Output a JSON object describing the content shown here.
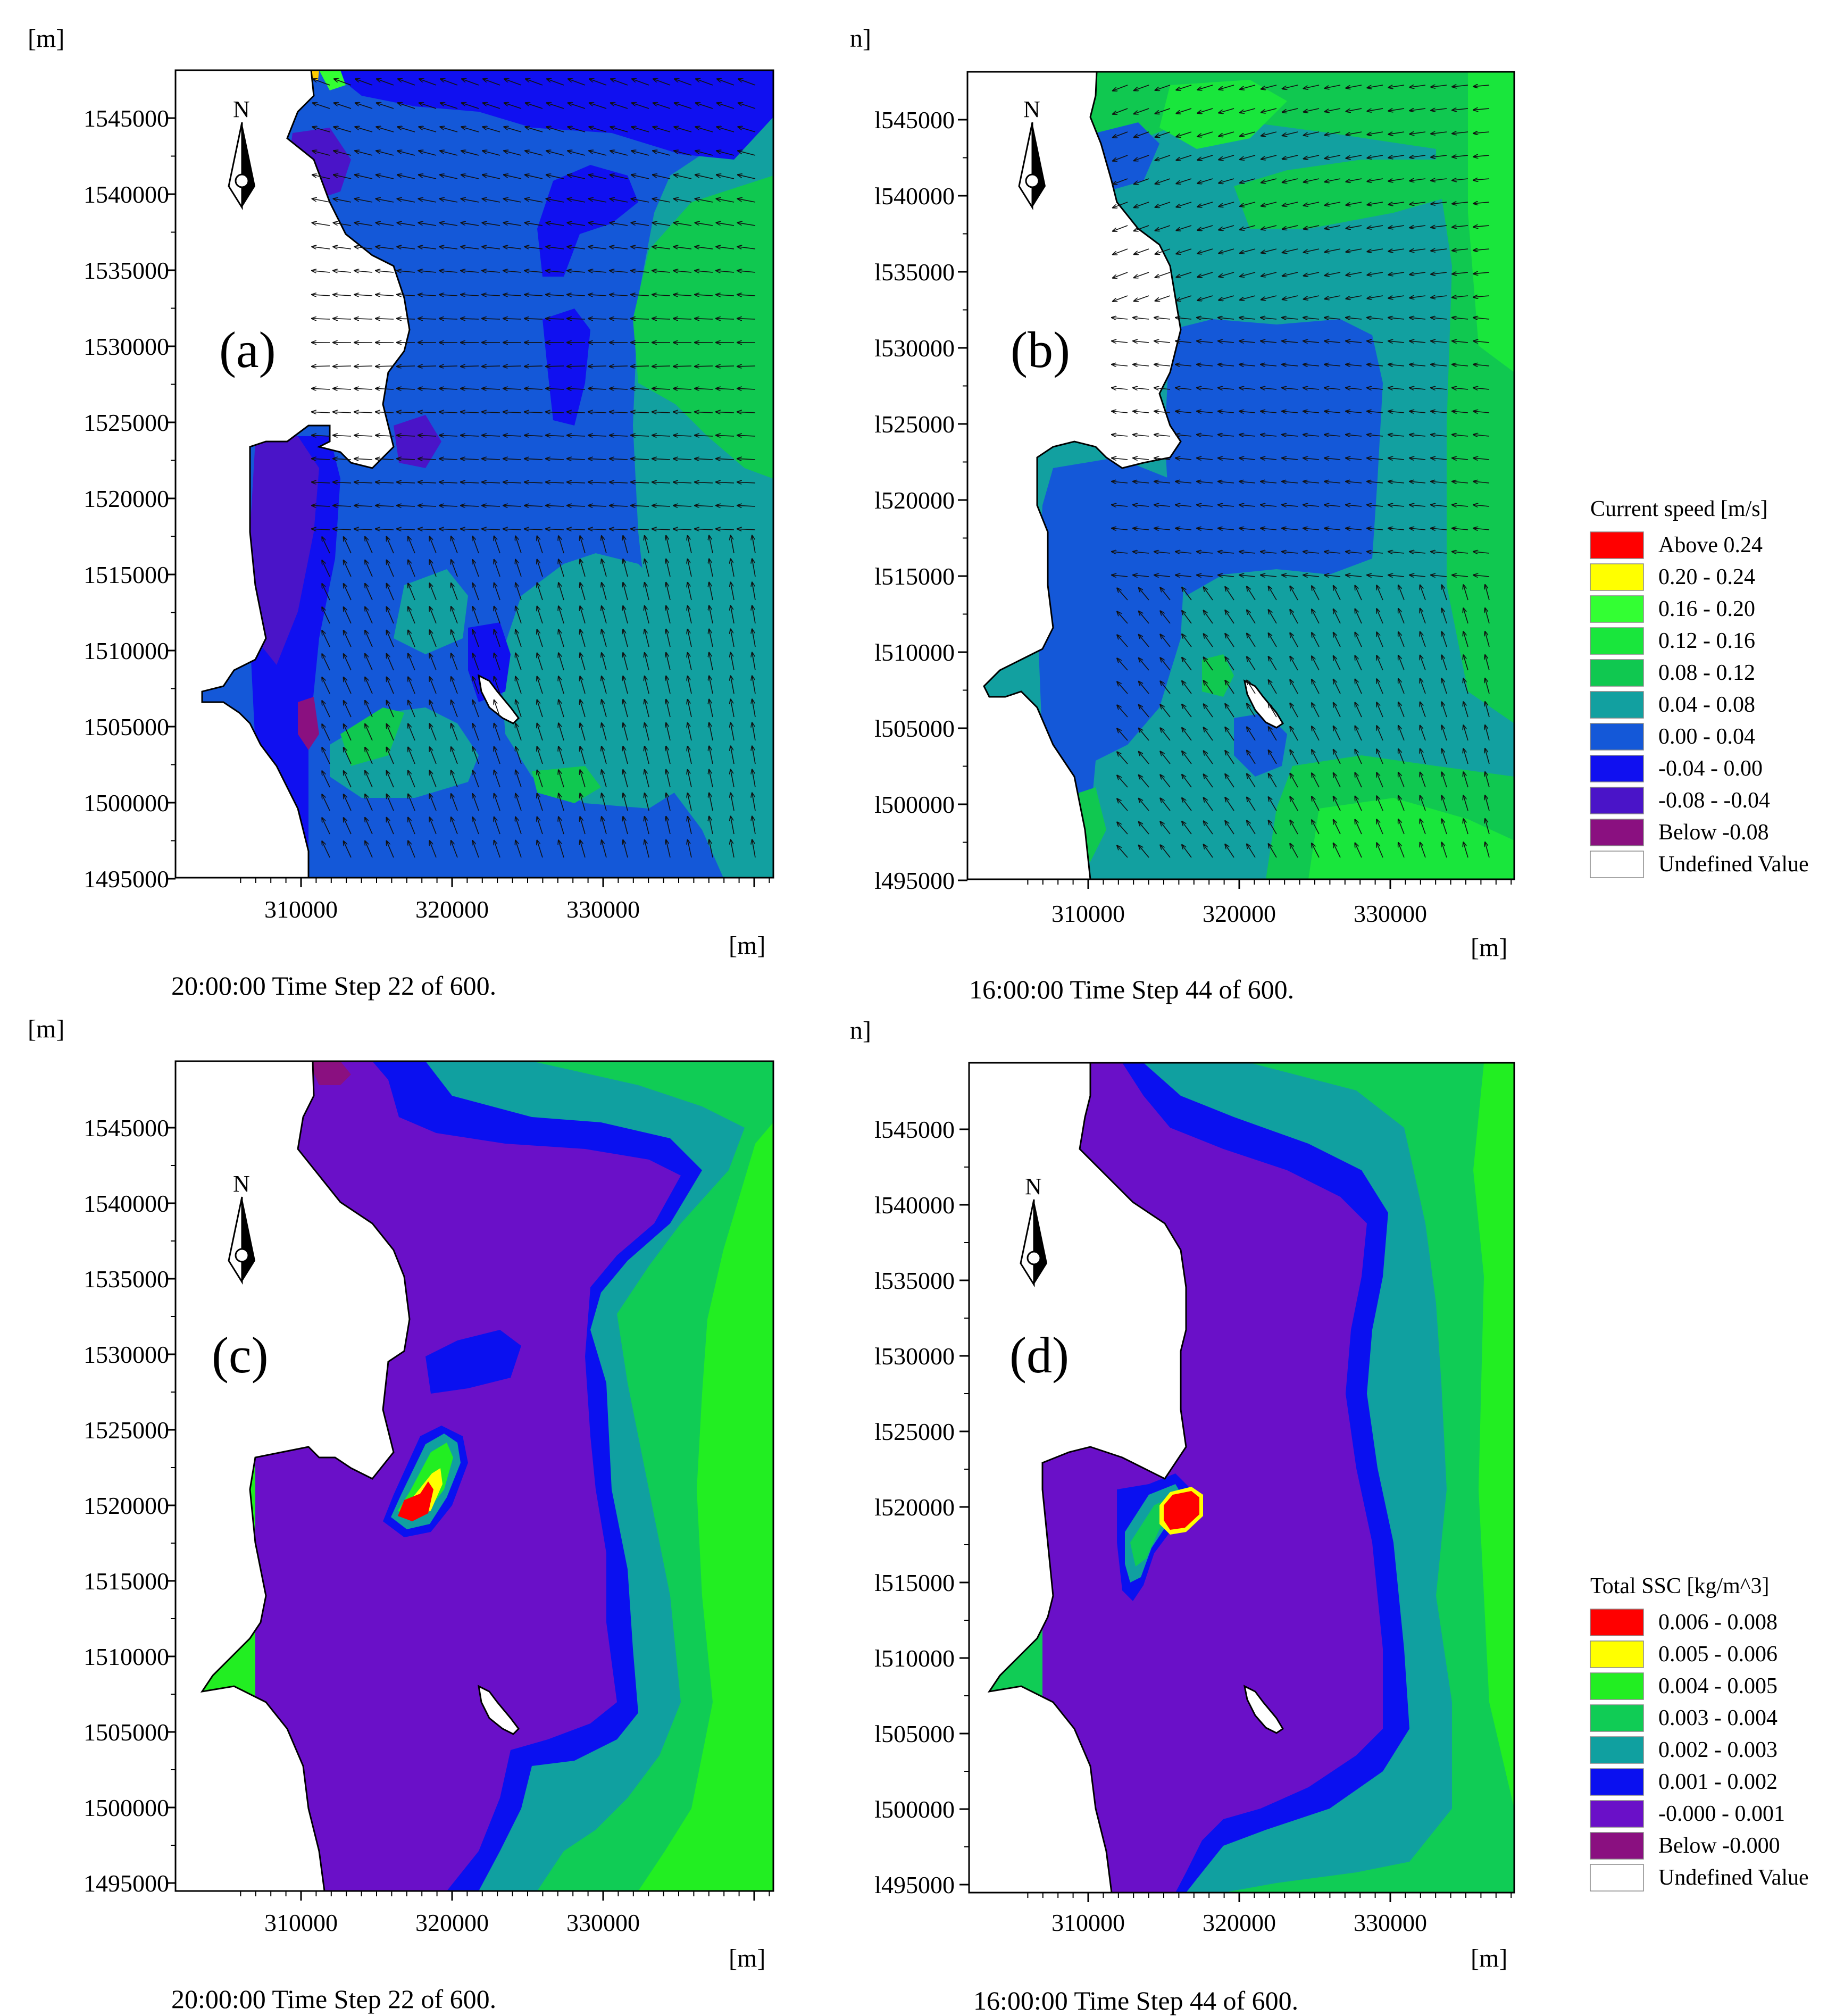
{
  "units_label": "[m]",
  "units_label_cut": "n]",
  "x_ticks": [
    "310000",
    "320000",
    "330000"
  ],
  "y_ticks": [
    "1545000",
    "1540000",
    "1535000",
    "1530000",
    "1525000",
    "1520000",
    "1515000",
    "1510000",
    "1505000",
    "1500000",
    "1495000"
  ],
  "y_ticks_cut": [
    "l545000",
    "l540000",
    "l535000",
    "l530000",
    "l525000",
    "l520000",
    "l515000",
    "l510000",
    "l505000",
    "l500000",
    "l495000"
  ],
  "north_label": "N",
  "panels": [
    {
      "letter": "(a)",
      "caption": "20:00:00 Time Step 22 of 600."
    },
    {
      "letter": "(b)",
      "caption": "16:00:00 Time Step 44 of 600."
    },
    {
      "letter": "(c)",
      "caption": "20:00:00 Time Step 22 of 600."
    },
    {
      "letter": "(d)",
      "caption": "16:00:00 Time Step 44 of 600."
    }
  ],
  "legend_current": {
    "title": "Current speed [m/s]",
    "items": [
      {
        "label": "Above  0.24",
        "color": "#ff0000"
      },
      {
        "label": " 0.20 -  0.24",
        "color": "#ffff00"
      },
      {
        "label": " 0.16 -  0.20",
        "color": "#33ff33"
      },
      {
        "label": " 0.12 -  0.16",
        "color": "#19e63c"
      },
      {
        "label": " 0.08 -  0.12",
        "color": "#10c850"
      },
      {
        "label": " 0.04 -  0.08",
        "color": "#12a0a0"
      },
      {
        "label": " 0.00 -  0.04",
        "color": "#1458d8"
      },
      {
        "label": "-0.04 -  0.00",
        "color": "#1010f0"
      },
      {
        "label": "-0.08 - -0.04",
        "color": "#4a14c8"
      },
      {
        "label": "Below -0.08",
        "color": "#8a1080"
      },
      {
        "label": "Undefined Value",
        "color": "#ffffff"
      }
    ]
  },
  "legend_ssc": {
    "title": "Total SSC [kg/m^3]",
    "items": [
      {
        "label": " 0.006 -  0.008",
        "color": "#ff0000"
      },
      {
        "label": " 0.005 -  0.006",
        "color": "#ffff00"
      },
      {
        "label": " 0.004 -  0.005",
        "color": "#22ee22"
      },
      {
        "label": " 0.003 -  0.004",
        "color": "#10cc55"
      },
      {
        "label": " 0.002 -  0.003",
        "color": "#10a0a0"
      },
      {
        "label": " 0.001 -  0.002",
        "color": "#0a10f0"
      },
      {
        "label": "-0.000 -  0.001",
        "color": "#6a10c8"
      },
      {
        "label": "Below   -0.000",
        "color": "#8a1080"
      },
      {
        "label": "Undefined Value",
        "color": "#ffffff"
      }
    ]
  }
}
